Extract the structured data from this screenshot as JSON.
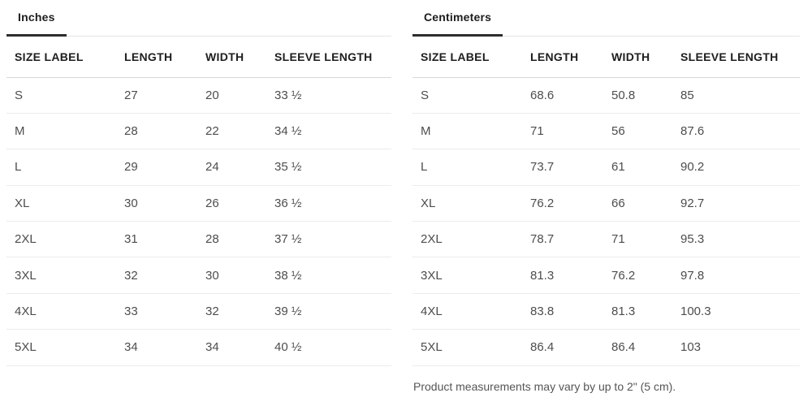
{
  "tables": [
    {
      "tab": "Inches",
      "columns": [
        "SIZE LABEL",
        "LENGTH",
        "WIDTH",
        "SLEEVE LENGTH"
      ],
      "rows": [
        [
          "S",
          "27",
          "20",
          "33 ½"
        ],
        [
          "M",
          "28",
          "22",
          "34 ½"
        ],
        [
          "L",
          "29",
          "24",
          "35 ½"
        ],
        [
          "XL",
          "30",
          "26",
          "36 ½"
        ],
        [
          "2XL",
          "31",
          "28",
          "37 ½"
        ],
        [
          "3XL",
          "32",
          "30",
          "38 ½"
        ],
        [
          "4XL",
          "33",
          "32",
          "39 ½"
        ],
        [
          "5XL",
          "34",
          "34",
          "40 ½"
        ]
      ],
      "footnote": ""
    },
    {
      "tab": "Centimeters",
      "columns": [
        "SIZE LABEL",
        "LENGTH",
        "WIDTH",
        "SLEEVE LENGTH"
      ],
      "rows": [
        [
          "S",
          "68.6",
          "50.8",
          "85"
        ],
        [
          "M",
          "71",
          "56",
          "87.6"
        ],
        [
          "L",
          "73.7",
          "61",
          "90.2"
        ],
        [
          "XL",
          "76.2",
          "66",
          "92.7"
        ],
        [
          "2XL",
          "78.7",
          "71",
          "95.3"
        ],
        [
          "3XL",
          "81.3",
          "76.2",
          "97.8"
        ],
        [
          "4XL",
          "83.8",
          "81.3",
          "100.3"
        ],
        [
          "5XL",
          "86.4",
          "86.4",
          "103"
        ]
      ],
      "footnote": "Product measurements may vary by up to 2\" (5 cm)."
    }
  ],
  "colors": {
    "tab_text": "#1d1d1d",
    "tab_underline_active": "#2d2d2d",
    "tab_rule": "#e6e6e6",
    "header_text": "#1e1e1e",
    "header_rule": "#d8d8d8",
    "cell_text": "#4d4d4d",
    "row_rule": "#ececec",
    "footnote_text": "#555555",
    "background": "#ffffff"
  }
}
